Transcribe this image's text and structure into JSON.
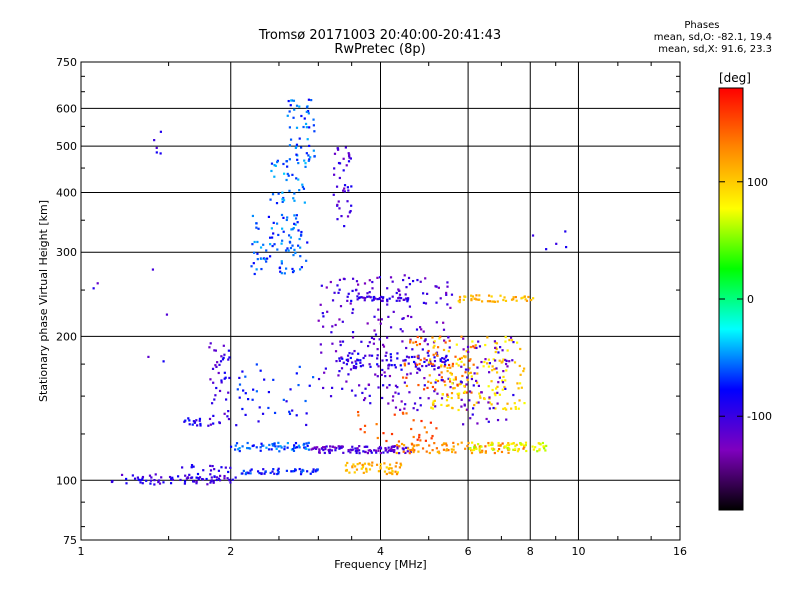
{
  "header": {
    "title_line1": "Tromsø 20171003 20:40:00-20:41:43",
    "title_line2": "RwPretec (8p)"
  },
  "phase_stats": {
    "heading": "Phases",
    "o_line": "mean, sd,O: -82.1, 19.4",
    "x_line": "mean, sd,X:  91.6, 23.3"
  },
  "colorbar": {
    "unit_label": "[deg]",
    "ticks": [
      {
        "value": 100,
        "label": "100"
      },
      {
        "value": 0,
        "label": "0"
      },
      {
        "value": -100,
        "label": "-100"
      }
    ],
    "range": [
      -180,
      180
    ],
    "colors": [
      "#000000",
      "#7f00bf",
      "#0000ff",
      "#00ffff",
      "#00ff00",
      "#ffff00",
      "#ff8800",
      "#ff0000"
    ]
  },
  "chart_data": {
    "type": "scatter",
    "xlabel": "Frequency [MHz]",
    "ylabel": "Stationary phase Virtual Height [km]",
    "x_scale": "log",
    "y_scale": "log",
    "xlim": [
      1,
      16
    ],
    "ylim": [
      75,
      750
    ],
    "x_ticks": [
      {
        "value": 1,
        "label": "1"
      },
      {
        "value": 2,
        "label": "2"
      },
      {
        "value": 4,
        "label": "4"
      },
      {
        "value": 6,
        "label": "6"
      },
      {
        "value": 8,
        "label": "8"
      },
      {
        "value": 10,
        "label": "10"
      },
      {
        "value": 16,
        "label": "16"
      }
    ],
    "y_ticks": [
      {
        "value": 75,
        "label": "75"
      },
      {
        "value": 100,
        "label": "100"
      },
      {
        "value": 200,
        "label": "200"
      },
      {
        "value": 300,
        "label": "300"
      },
      {
        "value": 400,
        "label": "400"
      },
      {
        "value": 500,
        "label": "500"
      },
      {
        "value": 600,
        "label": "600"
      },
      {
        "value": 750,
        "label": "750"
      }
    ],
    "grid": true,
    "clusters": [
      {
        "x": [
          1.15,
          2.05
        ],
        "y": [
          98,
          103
        ],
        "phase": -100,
        "n": 70
      },
      {
        "x": [
          1.55,
          2.0
        ],
        "y": [
          100,
          108
        ],
        "phase": -95,
        "n": 25
      },
      {
        "x": [
          2.1,
          3.0
        ],
        "y": [
          103,
          106
        ],
        "phase": -75,
        "n": 50
      },
      {
        "x": [
          3.4,
          4.4
        ],
        "y": [
          103,
          109
        ],
        "phase": 110,
        "n": 55
      },
      {
        "x": [
          1.6,
          1.75
        ],
        "y": [
          130,
          135
        ],
        "phase": -90,
        "n": 15
      },
      {
        "x": [
          1.8,
          2.0
        ],
        "y": [
          130,
          200
        ],
        "phase": -100,
        "n": 45
      },
      {
        "x": [
          2.05,
          3.0
        ],
        "y": [
          130,
          175
        ],
        "phase": -75,
        "n": 40
      },
      {
        "x": [
          2.0,
          2.9
        ],
        "y": [
          115,
          120
        ],
        "phase": -60,
        "n": 60
      },
      {
        "x": [
          2.9,
          4.6
        ],
        "y": [
          114,
          118
        ],
        "phase": -110,
        "n": 110
      },
      {
        "x": [
          4.3,
          7.8
        ],
        "y": [
          114,
          120
        ],
        "phase": 125,
        "n": 90
      },
      {
        "x": [
          6.0,
          8.7
        ],
        "y": [
          115,
          120
        ],
        "phase": 75,
        "n": 60
      },
      {
        "x": [
          2.2,
          2.85
        ],
        "y": [
          270,
          360
        ],
        "phase": -60,
        "n": 90
      },
      {
        "x": [
          2.4,
          2.85
        ],
        "y": [
          380,
          470
        ],
        "phase": -55,
        "n": 40
      },
      {
        "x": [
          2.6,
          2.95
        ],
        "y": [
          460,
          630
        ],
        "phase": -60,
        "n": 50
      },
      {
        "x": [
          3.2,
          3.5
        ],
        "y": [
          340,
          500
        ],
        "phase": -105,
        "n": 40
      },
      {
        "x": [
          3.0,
          5.6
        ],
        "y": [
          140,
          270
        ],
        "phase": -110,
        "n": 240
      },
      {
        "x": [
          3.3,
          5.5
        ],
        "y": [
          170,
          185
        ],
        "phase": -95,
        "n": 80
      },
      {
        "x": [
          4.4,
          6.2
        ],
        "y": [
          150,
          200
        ],
        "phase": 140,
        "n": 70
      },
      {
        "x": [
          5.0,
          7.8
        ],
        "y": [
          140,
          200
        ],
        "phase": 95,
        "n": 140
      },
      {
        "x": [
          5.8,
          7.4
        ],
        "y": [
          130,
          200
        ],
        "phase": -110,
        "n": 70
      },
      {
        "x": [
          5.7,
          8.2
        ],
        "y": [
          236,
          244
        ],
        "phase": 110,
        "n": 45
      },
      {
        "x": [
          3.4,
          4.6
        ],
        "y": [
          237,
          243
        ],
        "phase": -100,
        "n": 40
      },
      {
        "x": [
          3.6,
          5.2
        ],
        "y": [
          120,
          140
        ],
        "phase": 150,
        "n": 30
      },
      {
        "x": [
          1.4,
          1.45
        ],
        "y": [
          480,
          560
        ],
        "phase": -100,
        "n": 5
      },
      {
        "x": [
          1.33,
          1.5
        ],
        "y": [
          170,
          360
        ],
        "phase": -100,
        "n": 4
      },
      {
        "x": [
          1.05,
          1.12
        ],
        "y": [
          240,
          260
        ],
        "phase": -100,
        "n": 2
      },
      {
        "x": [
          8.0,
          10.2
        ],
        "y": [
          265,
          340
        ],
        "phase": -100,
        "n": 5
      }
    ]
  }
}
